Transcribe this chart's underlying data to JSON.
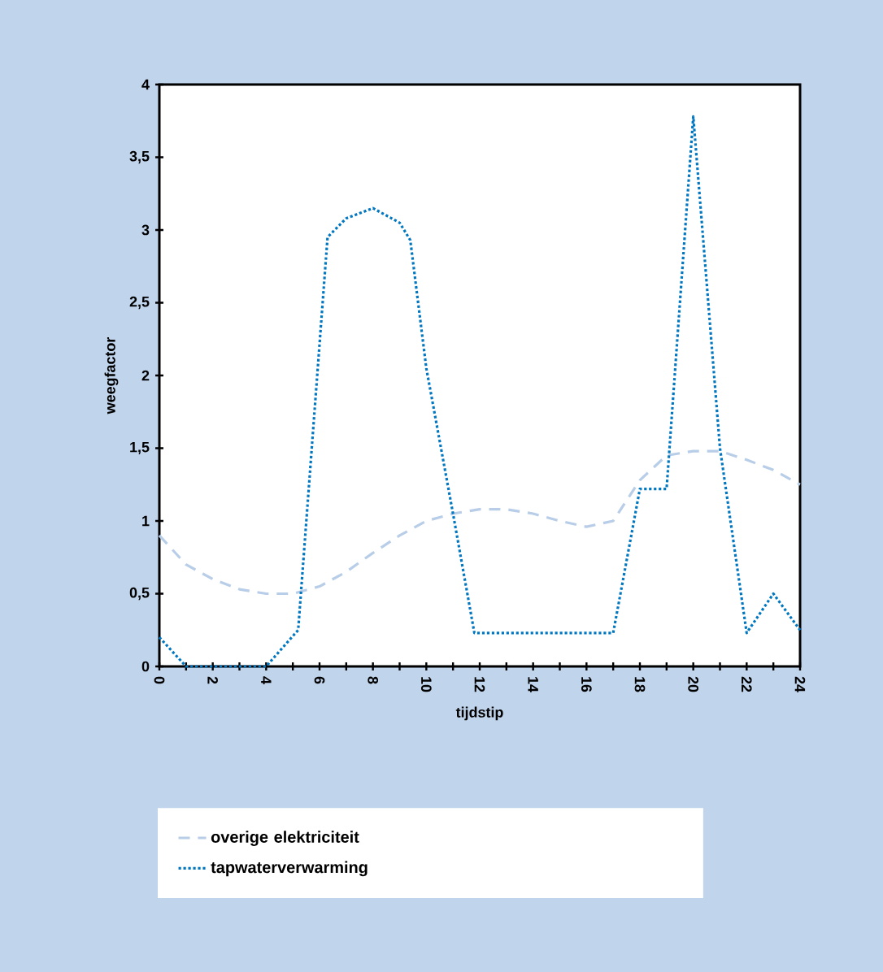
{
  "chart_data": {
    "type": "line",
    "xlabel": "tijdstip",
    "ylabel": "weegfactor",
    "xlim": [
      0,
      24
    ],
    "xticks": [
      0,
      2,
      4,
      6,
      8,
      10,
      12,
      14,
      16,
      18,
      20,
      22,
      24
    ],
    "ylim": [
      0,
      4
    ],
    "yticks": [
      0,
      {
        "value": 0.5,
        "label": "0,5"
      },
      1,
      {
        "value": 1.5,
        "label": "1,5"
      },
      2,
      {
        "value": 2.5,
        "label": "2,5"
      },
      3,
      {
        "value": 3.5,
        "label": "3,5"
      },
      4
    ],
    "grid": false,
    "legend": "bottom",
    "marker": "none",
    "series": [
      {
        "name": "overige elektriciteit",
        "color": "#b8cde8",
        "line_style": "dashed",
        "x": [
          0,
          1,
          2,
          3,
          4,
          5,
          6,
          7,
          8,
          9,
          10,
          11,
          12,
          13,
          14,
          15,
          16,
          17,
          18,
          19,
          20,
          21,
          22,
          23,
          24
        ],
        "values": [
          0.9,
          0.7,
          0.6,
          0.53,
          0.5,
          0.5,
          0.55,
          0.65,
          0.78,
          0.9,
          1.0,
          1.05,
          1.08,
          1.08,
          1.05,
          1.0,
          0.96,
          1.0,
          1.28,
          1.45,
          1.48,
          1.48,
          1.42,
          1.35,
          1.25
        ]
      },
      {
        "name": "tapwaterverwarming",
        "color": "#0077c0",
        "line_style": "dotted",
        "x": [
          0,
          1,
          4,
          5.2,
          6.3,
          7,
          8,
          9,
          9.4,
          10,
          11,
          11.8,
          17,
          18,
          19,
          20,
          21,
          22,
          23,
          24
        ],
        "values": [
          0.2,
          0,
          0,
          0.25,
          2.95,
          3.08,
          3.15,
          3.05,
          2.93,
          2.05,
          1.05,
          0.23,
          0.23,
          1.22,
          1.22,
          3.78,
          1.5,
          0.23,
          0.5,
          0.25
        ]
      }
    ]
  }
}
